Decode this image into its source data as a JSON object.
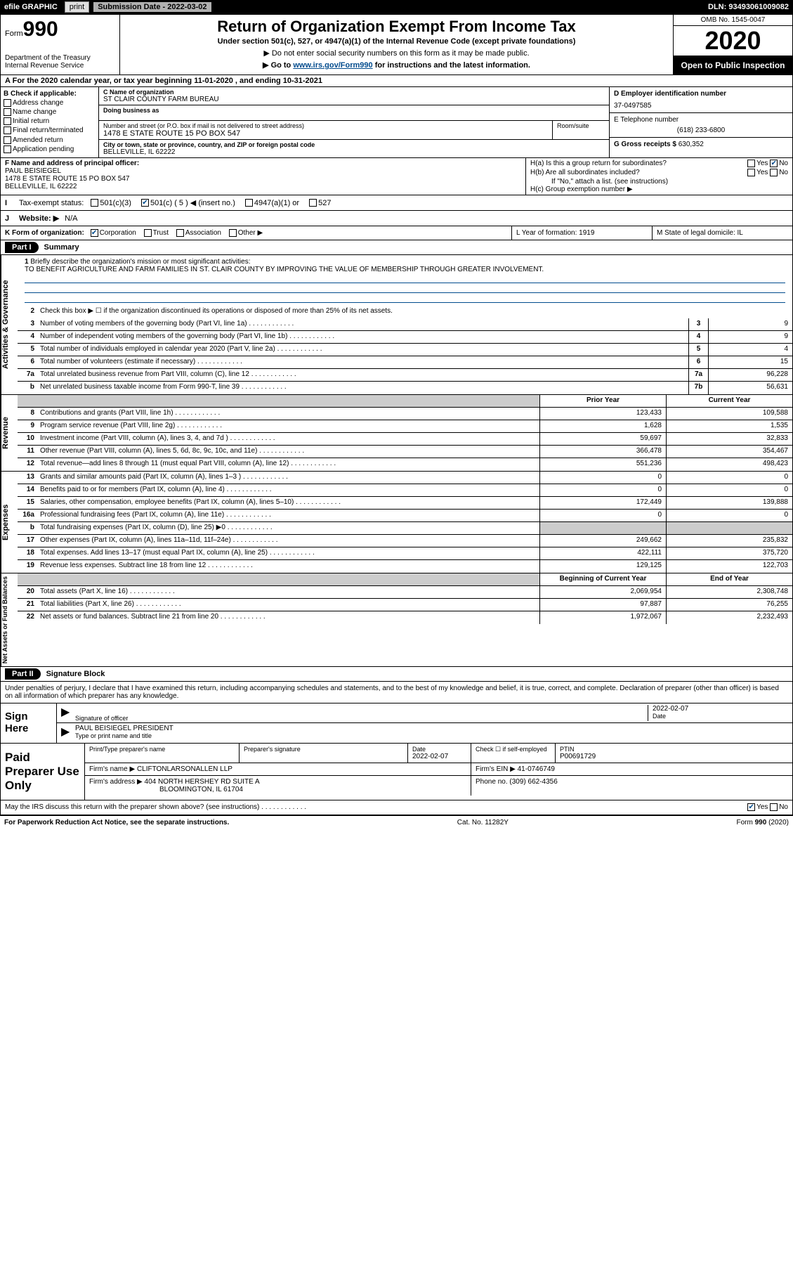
{
  "topbar": {
    "efile": "efile GRAPHIC",
    "print": "print",
    "submission": "Submission Date - 2022-03-02",
    "dln": "DLN: 93493061009082"
  },
  "header": {
    "form_label": "Form",
    "form_number": "990",
    "dept": "Department of the Treasury\nInternal Revenue Service",
    "title": "Return of Organization Exempt From Income Tax",
    "subtitle1": "Under section 501(c), 527, or 4947(a)(1) of the Internal Revenue Code (except private foundations)",
    "subtitle2": "▶ Do not enter social security numbers on this form as it may be made public.",
    "subtitle3_pre": "▶ Go to ",
    "subtitle3_link": "www.irs.gov/Form990",
    "subtitle3_post": " for instructions and the latest information.",
    "omb": "OMB No. 1545-0047",
    "year": "2020",
    "open": "Open to Public Inspection"
  },
  "A": "For the 2020 calendar year, or tax year beginning 11-01-2020   , and ending 10-31-2021",
  "B": {
    "label": "B Check if applicable:",
    "options": [
      "Address change",
      "Name change",
      "Initial return",
      "Final return/terminated",
      "Amended return",
      "Application pending"
    ]
  },
  "C": {
    "name_lbl": "C Name of organization",
    "name": "ST CLAIR COUNTY FARM BUREAU",
    "dba_lbl": "Doing business as",
    "dba": "",
    "street_lbl": "Number and street (or P.O. box if mail is not delivered to street address)",
    "street": "1478 E STATE ROUTE 15 PO BOX 547",
    "room_lbl": "Room/suite",
    "city_lbl": "City or town, state or province, country, and ZIP or foreign postal code",
    "city": "BELLEVILLE, IL  62222"
  },
  "D": {
    "ein_lbl": "D Employer identification number",
    "ein": "37-0497585",
    "phone_lbl": "E Telephone number",
    "phone": "(618) 233-6800",
    "gross_lbl": "G Gross receipts $",
    "gross": "630,352"
  },
  "F": {
    "lbl": "F Name and address of principal officer:",
    "name": "PAUL BEISIEGEL",
    "addr1": "1478 E STATE ROUTE 15 PO BOX 547",
    "addr2": "BELLEVILLE, IL  62222"
  },
  "H": {
    "ha": "H(a)  Is this a group return for subordinates?",
    "hb": "H(b)  Are all subordinates included?",
    "hb_note": "If \"No,\" attach a list. (see instructions)",
    "hc": "H(c)  Group exemption number ▶",
    "yes": "Yes",
    "no": "No"
  },
  "I": {
    "lbl": "Tax-exempt status:",
    "opts": [
      "501(c)(3)",
      "501(c) ( 5 ) ◀ (insert no.)",
      "4947(a)(1) or",
      "527"
    ]
  },
  "J": {
    "lbl": "Website: ▶",
    "val": "N/A"
  },
  "K": {
    "lbl": "K Form of organization:",
    "opts": [
      "Corporation",
      "Trust",
      "Association",
      "Other ▶"
    ],
    "L": "L Year of formation: 1919",
    "M": "M State of legal domicile: IL"
  },
  "parts": {
    "p1": "Part I",
    "p1_title": "Summary",
    "p2": "Part II",
    "p2_title": "Signature Block"
  },
  "summary": {
    "q1": "Briefly describe the organization's mission or most significant activities:",
    "mission": "TO BENEFIT AGRICULTURE AND FARM FAMILIES IN ST. CLAIR COUNTY BY IMPROVING THE VALUE OF MEMBERSHIP THROUGH GREATER INVOLVEMENT.",
    "q2": "Check this box ▶ ☐  if the organization discontinued its operations or disposed of more than 25% of its net assets.",
    "lines_single": [
      {
        "n": "3",
        "d": "Number of voting members of the governing body (Part VI, line 1a)",
        "b": "3",
        "v": "9"
      },
      {
        "n": "4",
        "d": "Number of independent voting members of the governing body (Part VI, line 1b)",
        "b": "4",
        "v": "9"
      },
      {
        "n": "5",
        "d": "Total number of individuals employed in calendar year 2020 (Part V, line 2a)",
        "b": "5",
        "v": "4"
      },
      {
        "n": "6",
        "d": "Total number of volunteers (estimate if necessary)",
        "b": "6",
        "v": "15"
      },
      {
        "n": "7a",
        "d": "Total unrelated business revenue from Part VIII, column (C), line 12",
        "b": "7a",
        "v": "96,228"
      },
      {
        "n": "b",
        "d": "Net unrelated business taxable income from Form 990-T, line 39",
        "b": "7b",
        "v": "56,631"
      }
    ],
    "col_headers": {
      "prior": "Prior Year",
      "current": "Current Year"
    },
    "revenue": [
      {
        "n": "8",
        "d": "Contributions and grants (Part VIII, line 1h)",
        "p": "123,433",
        "c": "109,588"
      },
      {
        "n": "9",
        "d": "Program service revenue (Part VIII, line 2g)",
        "p": "1,628",
        "c": "1,535"
      },
      {
        "n": "10",
        "d": "Investment income (Part VIII, column (A), lines 3, 4, and 7d )",
        "p": "59,697",
        "c": "32,833"
      },
      {
        "n": "11",
        "d": "Other revenue (Part VIII, column (A), lines 5, 6d, 8c, 9c, 10c, and 11e)",
        "p": "366,478",
        "c": "354,467"
      },
      {
        "n": "12",
        "d": "Total revenue—add lines 8 through 11 (must equal Part VIII, column (A), line 12)",
        "p": "551,236",
        "c": "498,423"
      }
    ],
    "expenses": [
      {
        "n": "13",
        "d": "Grants and similar amounts paid (Part IX, column (A), lines 1–3 )",
        "p": "0",
        "c": "0"
      },
      {
        "n": "14",
        "d": "Benefits paid to or for members (Part IX, column (A), line 4)",
        "p": "0",
        "c": "0"
      },
      {
        "n": "15",
        "d": "Salaries, other compensation, employee benefits (Part IX, column (A), lines 5–10)",
        "p": "172,449",
        "c": "139,888"
      },
      {
        "n": "16a",
        "d": "Professional fundraising fees (Part IX, column (A), line 11e)",
        "p": "0",
        "c": "0"
      },
      {
        "n": "b",
        "d": "Total fundraising expenses (Part IX, column (D), line 25) ▶0",
        "p": "",
        "c": "",
        "shade": true
      },
      {
        "n": "17",
        "d": "Other expenses (Part IX, column (A), lines 11a–11d, 11f–24e)",
        "p": "249,662",
        "c": "235,832"
      },
      {
        "n": "18",
        "d": "Total expenses. Add lines 13–17 (must equal Part IX, column (A), line 25)",
        "p": "422,111",
        "c": "375,720"
      },
      {
        "n": "19",
        "d": "Revenue less expenses. Subtract line 18 from line 12",
        "p": "129,125",
        "c": "122,703"
      }
    ],
    "balance_headers": {
      "begin": "Beginning of Current Year",
      "end": "End of Year"
    },
    "balance": [
      {
        "n": "20",
        "d": "Total assets (Part X, line 16)",
        "p": "2,069,954",
        "c": "2,308,748"
      },
      {
        "n": "21",
        "d": "Total liabilities (Part X, line 26)",
        "p": "97,887",
        "c": "76,255"
      },
      {
        "n": "22",
        "d": "Net assets or fund balances. Subtract line 21 from line 20",
        "p": "1,972,067",
        "c": "2,232,493"
      }
    ],
    "vside": {
      "ag": "Activities & Governance",
      "rev": "Revenue",
      "exp": "Expenses",
      "net": "Net Assets or Fund Balances"
    }
  },
  "sig": {
    "decl": "Under penalties of perjury, I declare that I have examined this return, including accompanying schedules and statements, and to the best of my knowledge and belief, it is true, correct, and complete. Declaration of preparer (other than officer) is based on all information of which preparer has any knowledge.",
    "sign_here": "Sign Here",
    "sig_officer": "Signature of officer",
    "sig_date": "2022-02-07",
    "date_lbl": "Date",
    "officer_name": "PAUL BEISIEGEL PRESIDENT",
    "type_lbl": "Type or print name and title",
    "paid": "Paid Preparer Use Only",
    "prep_name_lbl": "Print/Type preparer's name",
    "prep_sig_lbl": "Preparer's signature",
    "prep_date_lbl": "Date",
    "prep_date": "2022-02-07",
    "check_lbl": "Check ☐ if self-employed",
    "ptin_lbl": "PTIN",
    "ptin": "P00691729",
    "firm_name_lbl": "Firm's name    ▶",
    "firm_name": "CLIFTONLARSONALLEN LLP",
    "firm_ein_lbl": "Firm's EIN ▶",
    "firm_ein": "41-0746749",
    "firm_addr_lbl": "Firm's address ▶",
    "firm_addr1": "404 NORTH HERSHEY RD SUITE A",
    "firm_addr2": "BLOOMINGTON, IL  61704",
    "firm_phone_lbl": "Phone no.",
    "firm_phone": "(309) 662-4356",
    "may_irs": "May the IRS discuss this return with the preparer shown above? (see instructions)"
  },
  "footer": {
    "pra": "For Paperwork Reduction Act Notice, see the separate instructions.",
    "cat": "Cat. No. 11282Y",
    "form": "Form 990 (2020)"
  }
}
